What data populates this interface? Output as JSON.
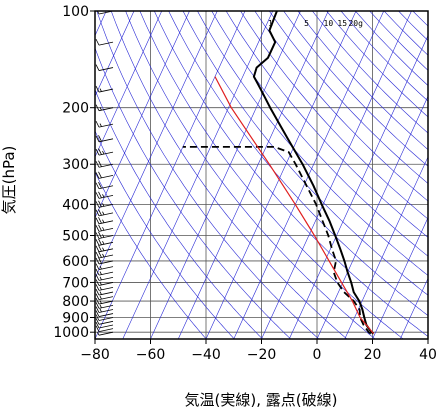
{
  "chart_data": {
    "type": "line",
    "chart_kind": "skew-T log-P diagram",
    "xlabel": "気温(実線), 露点(破線)",
    "ylabel": "気圧(hPa)",
    "x_axis": {
      "min": -80,
      "max": 40,
      "ticks": [
        -80,
        -60,
        -40,
        -20,
        0,
        20,
        40
      ],
      "tick_labels": [
        "−80",
        "−60",
        "−40",
        "−20",
        "0",
        "20",
        "40"
      ]
    },
    "y_axis": {
      "scale": "log",
      "min": 100,
      "max": 1050,
      "ticks": [
        100,
        200,
        300,
        400,
        500,
        600,
        700,
        800,
        900,
        1000
      ],
      "tick_labels": [
        "100",
        "200",
        "300",
        "400",
        "500",
        "600",
        "700",
        "800",
        "900",
        "1000"
      ]
    },
    "grid": true,
    "mixing_ratio_labels": [
      "1",
      "5",
      "10",
      "15",
      "20g"
    ],
    "series": [
      {
        "points": [
          {
            "p": 1010,
            "t": 19.5
          },
          {
            "p": 1000,
            "t": 18.5
          },
          {
            "p": 950,
            "t": 15.5
          },
          {
            "p": 900,
            "t": 13.5
          },
          {
            "p": 850,
            "t": 11.5
          },
          {
            "p": 800,
            "t": 9.0
          },
          {
            "p": 750,
            "t": 5.5
          },
          {
            "p": 700,
            "t": 3.0
          },
          {
            "p": 650,
            "t": 0.0
          },
          {
            "p": 600,
            "t": -3.0
          },
          {
            "p": 550,
            "t": -6.5
          },
          {
            "p": 500,
            "t": -10.5
          },
          {
            "p": 450,
            "t": -15.0
          },
          {
            "p": 400,
            "t": -20.5
          },
          {
            "p": 350,
            "t": -26.5
          },
          {
            "p": 300,
            "t": -34.0
          },
          {
            "p": 250,
            "t": -43.5
          },
          {
            "p": 200,
            "t": -55.0
          },
          {
            "p": 175,
            "t": -61.5
          },
          {
            "p": 160,
            "t": -66.0
          },
          {
            "p": 150,
            "t": -66.5
          },
          {
            "p": 140,
            "t": -64.0
          },
          {
            "p": 125,
            "t": -64.0
          },
          {
            "p": 115,
            "t": -68.0
          },
          {
            "p": 100,
            "t": -68.5
          }
        ]
      },
      {
        "points": [
          {
            "p": 1010,
            "t": 18.5
          },
          {
            "p": 1000,
            "t": 17.5
          },
          {
            "p": 950,
            "t": 14.5
          },
          {
            "p": 900,
            "t": 12.0
          },
          {
            "p": 850,
            "t": 10.5
          },
          {
            "p": 800,
            "t": 7.0
          },
          {
            "p": 750,
            "t": 2.0
          },
          {
            "p": 700,
            "t": -2.0
          },
          {
            "p": 650,
            "t": -5.0
          },
          {
            "p": 600,
            "t": -6.0
          },
          {
            "p": 550,
            "t": -9.5
          },
          {
            "p": 500,
            "t": -13.0
          },
          {
            "p": 450,
            "t": -17.5
          },
          {
            "p": 400,
            "t": -22.5
          },
          {
            "p": 350,
            "t": -29.0
          },
          {
            "p": 300,
            "t": -36.5
          },
          {
            "p": 275,
            "t": -41.0
          },
          {
            "p": 265,
            "t": -47.0
          },
          {
            "p": 265,
            "t": -80.0
          }
        ]
      },
      {
        "points": [
          {
            "p": 1010,
            "t": 19.5
          },
          {
            "p": 900,
            "t": 12.0
          },
          {
            "p": 800,
            "t": 6.5
          },
          {
            "p": 700,
            "t": -0.5
          },
          {
            "p": 600,
            "t": -8.5
          },
          {
            "p": 500,
            "t": -18.0
          },
          {
            "p": 400,
            "t": -30.0
          },
          {
            "p": 300,
            "t": -46.0
          },
          {
            "p": 200,
            "t": -69.0
          },
          {
            "p": 160,
            "t": -80.0
          }
        ]
      }
    ],
    "colors": {
      "temperature": "#000000",
      "dewpoint": "#000000",
      "parcel": "#e02020",
      "isotherms": "#2b2bd6",
      "frame": "#000000",
      "wind_barbs": "#000000"
    },
    "wind_barbs": [
      {
        "p": 1000,
        "kt": 5
      },
      {
        "p": 975,
        "kt": 10
      },
      {
        "p": 950,
        "kt": 10
      },
      {
        "p": 925,
        "kt": 10
      },
      {
        "p": 900,
        "kt": 10
      },
      {
        "p": 875,
        "kt": 10
      },
      {
        "p": 850,
        "kt": 15
      },
      {
        "p": 825,
        "kt": 15
      },
      {
        "p": 800,
        "kt": 15
      },
      {
        "p": 775,
        "kt": 15
      },
      {
        "p": 750,
        "kt": 15
      },
      {
        "p": 725,
        "kt": 15
      },
      {
        "p": 700,
        "kt": 15
      },
      {
        "p": 675,
        "kt": 15
      },
      {
        "p": 650,
        "kt": 15
      },
      {
        "p": 625,
        "kt": 15
      },
      {
        "p": 600,
        "kt": 20
      },
      {
        "p": 575,
        "kt": 25
      },
      {
        "p": 550,
        "kt": 25
      },
      {
        "p": 525,
        "kt": 25
      },
      {
        "p": 500,
        "kt": 25
      },
      {
        "p": 475,
        "kt": 25
      },
      {
        "p": 450,
        "kt": 25
      },
      {
        "p": 425,
        "kt": 25
      },
      {
        "p": 400,
        "kt": 25
      },
      {
        "p": 375,
        "kt": 25
      },
      {
        "p": 350,
        "kt": 20
      },
      {
        "p": 325,
        "kt": 20
      },
      {
        "p": 300,
        "kt": 20
      },
      {
        "p": 275,
        "kt": 25
      },
      {
        "p": 250,
        "kt": 20
      },
      {
        "p": 225,
        "kt": 15
      },
      {
        "p": 200,
        "kt": 15
      },
      {
        "p": 175,
        "kt": 15
      },
      {
        "p": 150,
        "kt": 10
      },
      {
        "p": 125,
        "kt": 10
      },
      {
        "p": 100,
        "kt": 5
      }
    ]
  }
}
